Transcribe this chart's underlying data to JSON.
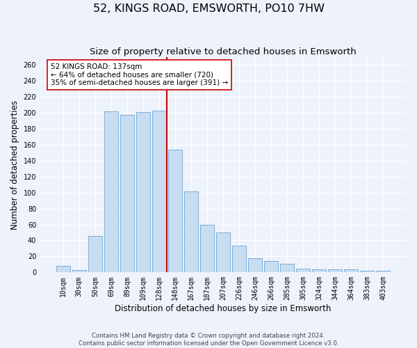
{
  "title": "52, KINGS ROAD, EMSWORTH, PO10 7HW",
  "subtitle": "Size of property relative to detached houses in Emsworth",
  "xlabel": "Distribution of detached houses by size in Emsworth",
  "ylabel": "Number of detached properties",
  "categories": [
    "10sqm",
    "30sqm",
    "50sqm",
    "69sqm",
    "89sqm",
    "109sqm",
    "128sqm",
    "148sqm",
    "167sqm",
    "187sqm",
    "207sqm",
    "226sqm",
    "246sqm",
    "266sqm",
    "285sqm",
    "305sqm",
    "324sqm",
    "344sqm",
    "364sqm",
    "383sqm",
    "403sqm"
  ],
  "values": [
    8,
    3,
    46,
    202,
    197,
    201,
    203,
    154,
    101,
    60,
    50,
    33,
    18,
    14,
    11,
    5,
    4,
    4,
    4,
    2,
    2
  ],
  "bar_color": "#c9ddf2",
  "bar_edge_color": "#7aadd4",
  "vline_color": "#cc0000",
  "annotation_text": "52 KINGS ROAD: 137sqm\n← 64% of detached houses are smaller (720)\n35% of semi-detached houses are larger (391) →",
  "annotation_box_color": "#ffffff",
  "annotation_box_edge": "#cc0000",
  "bg_color": "#eef2fb",
  "grid_color": "#ffffff",
  "footer1": "Contains HM Land Registry data © Crown copyright and database right 2024.",
  "footer2": "Contains public sector information licensed under the Open Government Licence v3.0.",
  "ylim": [
    0,
    270
  ],
  "yticks": [
    0,
    20,
    40,
    60,
    80,
    100,
    120,
    140,
    160,
    180,
    200,
    220,
    240,
    260
  ],
  "title_fontsize": 11.5,
  "subtitle_fontsize": 9.5,
  "axis_label_fontsize": 8.5,
  "tick_fontsize": 7,
  "footer_fontsize": 6.2
}
